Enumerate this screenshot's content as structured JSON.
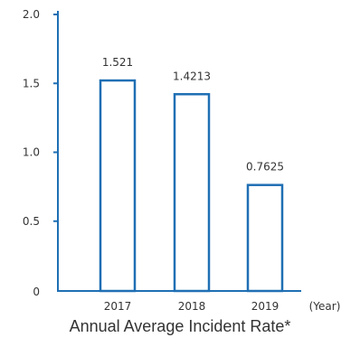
{
  "chart_data": {
    "type": "bar",
    "categories": [
      "2017",
      "2018",
      "2019"
    ],
    "values": [
      1.521,
      1.4213,
      0.7625
    ],
    "value_labels": [
      "1.521",
      "1.4213",
      "0.7625"
    ],
    "xlabel": "(Year)",
    "ylabel": "",
    "title": "Annual Average Incident Rate*",
    "ylim": [
      0,
      2.0
    ],
    "yticks": [
      0,
      0.5,
      1.0,
      1.5,
      2.0
    ],
    "ytick_labels": [
      "0",
      "0.5",
      "1.0",
      "1.5",
      "2.0"
    ],
    "grid": false,
    "colors": {
      "axis": "#1f6fb4",
      "bar_stroke": "#1f6fb4",
      "bar_fill": "#ffffff",
      "text": "#333333"
    }
  }
}
